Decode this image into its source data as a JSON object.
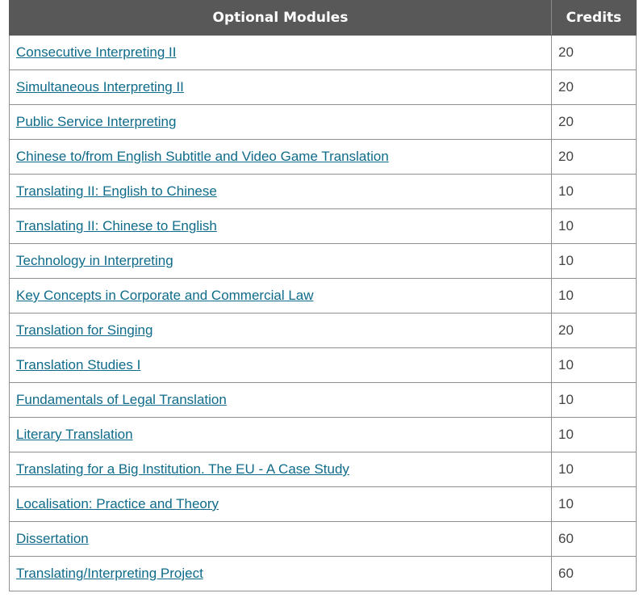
{
  "table": {
    "headers": {
      "module": "Optional Modules",
      "credits": "Credits"
    },
    "rows": [
      {
        "module": "Consecutive Interpreting II",
        "credits": "20"
      },
      {
        "module": "Simultaneous Interpreting II",
        "credits": "20"
      },
      {
        "module": "Public Service Interpreting",
        "credits": "20"
      },
      {
        "module": "Chinese to/from English Subtitle and Video Game Translation",
        "credits": "20"
      },
      {
        "module": "Translating II: English to Chinese",
        "credits": "10"
      },
      {
        "module": "Translating II: Chinese to English",
        "credits": "10"
      },
      {
        "module": "Technology in Interpreting",
        "credits": "10"
      },
      {
        "module": "Key Concepts in Corporate and Commercial Law",
        "credits": "10"
      },
      {
        "module": "Translation for Singing",
        "credits": "20"
      },
      {
        "module": "Translation Studies I",
        "credits": "10"
      },
      {
        "module": "Fundamentals of Legal Translation",
        "credits": "10"
      },
      {
        "module": "Literary Translation",
        "credits": "10"
      },
      {
        "module": "Translating for a Big Institution. The EU - A Case Study",
        "credits": "10"
      },
      {
        "module": "Localisation: Practice and Theory",
        "credits": "10"
      },
      {
        "module": "Dissertation",
        "credits": "60"
      },
      {
        "module": "Translating/Interpreting Project",
        "credits": "60"
      }
    ]
  },
  "colors": {
    "header_bg": "#585858",
    "header_text": "#ffffff",
    "link": "#0f6b8a",
    "border": "#8f8f8f"
  }
}
